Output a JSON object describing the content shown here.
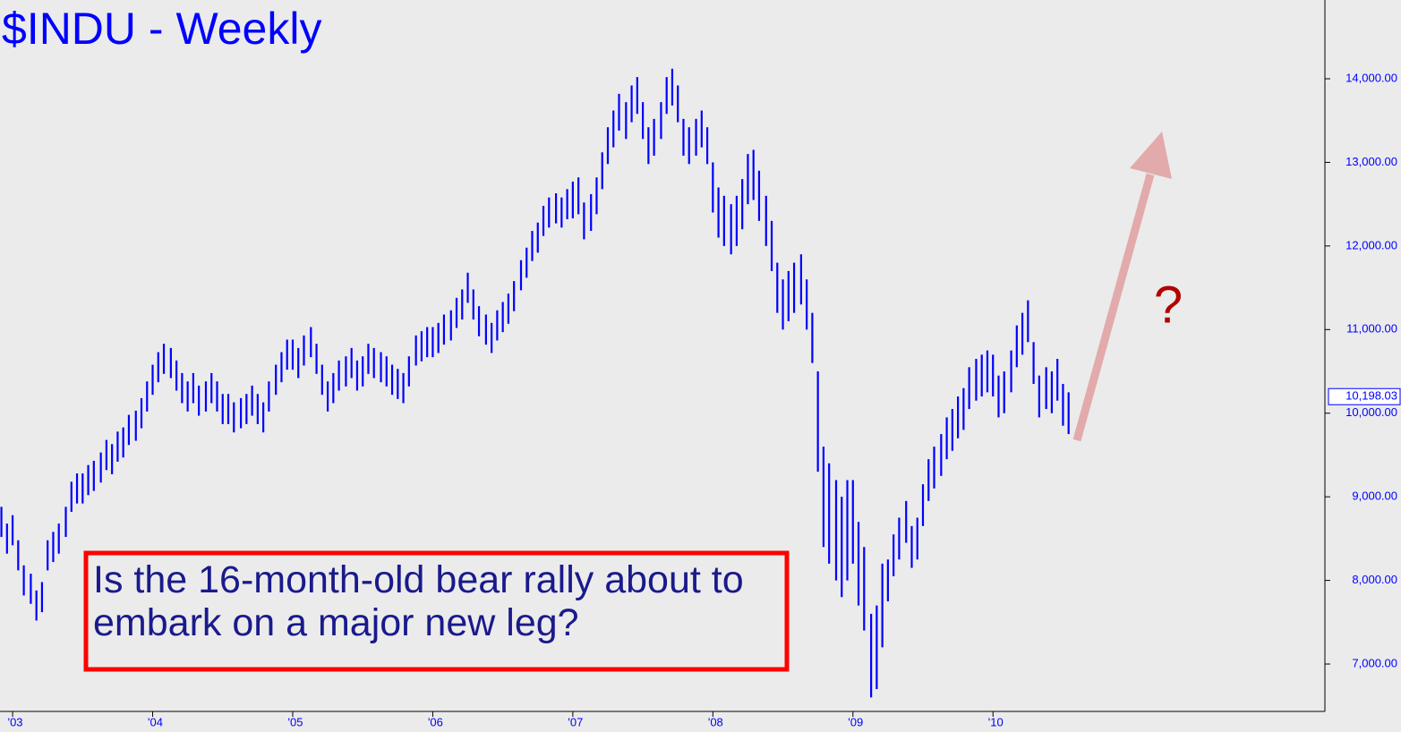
{
  "chart_data": {
    "type": "range-bar",
    "title": "$INDU - Weekly",
    "annotation": "Is the 16-month-old bear rally about to embark on a major new leg?",
    "question": "?",
    "color": "#0000ff",
    "last_value": {
      "value": 10198.03,
      "label": "10,198.03"
    },
    "xlim": [
      2002.91,
      2012.37
    ],
    "ylim": [
      6433,
      14942
    ],
    "xticks": [
      {
        "value": 2003,
        "label": "'03"
      },
      {
        "value": 2004,
        "label": "'04"
      },
      {
        "value": 2005,
        "label": "'05"
      },
      {
        "value": 2006,
        "label": "'06"
      },
      {
        "value": 2007,
        "label": "'07"
      },
      {
        "value": 2008,
        "label": "'08"
      },
      {
        "value": 2009,
        "label": "'09"
      },
      {
        "value": 2010,
        "label": "'10"
      }
    ],
    "yticks": [
      {
        "value": 7000,
        "label": "7,000.00"
      },
      {
        "value": 8000,
        "label": "8,000.00"
      },
      {
        "value": 9000,
        "label": "9,000.00"
      },
      {
        "value": 10000,
        "label": "10,000.00"
      },
      {
        "value": 11000,
        "label": "11,000.00"
      },
      {
        "value": 12000,
        "label": "12,000.00"
      },
      {
        "value": 13000,
        "label": "13,000.00"
      },
      {
        "value": 14000,
        "label": "14,000.00"
      }
    ],
    "x": [
      2002.92,
      2002.96,
      2003.0,
      2003.04,
      2003.08,
      2003.13,
      2003.17,
      2003.21,
      2003.25,
      2003.29,
      2003.33,
      2003.38,
      2003.42,
      2003.46,
      2003.5,
      2003.54,
      2003.58,
      2003.63,
      2003.67,
      2003.71,
      2003.75,
      2003.79,
      2003.83,
      2003.88,
      2003.92,
      2003.96,
      2004.0,
      2004.04,
      2004.08,
      2004.13,
      2004.17,
      2004.21,
      2004.25,
      2004.29,
      2004.33,
      2004.38,
      2004.42,
      2004.46,
      2004.5,
      2004.54,
      2004.58,
      2004.63,
      2004.67,
      2004.71,
      2004.75,
      2004.79,
      2004.83,
      2004.88,
      2004.92,
      2004.96,
      2005.0,
      2005.04,
      2005.08,
      2005.13,
      2005.17,
      2005.21,
      2005.25,
      2005.29,
      2005.33,
      2005.38,
      2005.42,
      2005.46,
      2005.5,
      2005.54,
      2005.58,
      2005.63,
      2005.67,
      2005.71,
      2005.75,
      2005.79,
      2005.83,
      2005.88,
      2005.92,
      2005.96,
      2006.0,
      2006.04,
      2006.08,
      2006.13,
      2006.17,
      2006.21,
      2006.25,
      2006.29,
      2006.33,
      2006.38,
      2006.42,
      2006.46,
      2006.5,
      2006.54,
      2006.58,
      2006.63,
      2006.67,
      2006.71,
      2006.75,
      2006.79,
      2006.83,
      2006.88,
      2006.92,
      2006.96,
      2007.0,
      2007.04,
      2007.08,
      2007.13,
      2007.17,
      2007.21,
      2007.25,
      2007.29,
      2007.33,
      2007.38,
      2007.42,
      2007.46,
      2007.5,
      2007.54,
      2007.58,
      2007.63,
      2007.67,
      2007.71,
      2007.75,
      2007.79,
      2007.83,
      2007.88,
      2007.92,
      2007.96,
      2008.0,
      2008.04,
      2008.08,
      2008.13,
      2008.17,
      2008.21,
      2008.25,
      2008.29,
      2008.33,
      2008.38,
      2008.42,
      2008.46,
      2008.5,
      2008.54,
      2008.58,
      2008.63,
      2008.67,
      2008.71,
      2008.75,
      2008.79,
      2008.83,
      2008.88,
      2008.92,
      2008.96,
      2009.0,
      2009.04,
      2009.08,
      2009.13,
      2009.17,
      2009.21,
      2009.25,
      2009.29,
      2009.33,
      2009.38,
      2009.42,
      2009.46,
      2009.5,
      2009.54,
      2009.58,
      2009.63,
      2009.67,
      2009.71,
      2009.75,
      2009.79,
      2009.83,
      2009.88,
      2009.92,
      2009.96,
      2010.0,
      2010.04,
      2010.08,
      2010.13,
      2010.17,
      2010.21,
      2010.25,
      2010.29,
      2010.33,
      2010.38,
      2010.42,
      2010.46,
      2010.5,
      2010.54
    ],
    "high": [
      8880,
      8680,
      8780,
      8480,
      8180,
      8080,
      7880,
      7980,
      8480,
      8580,
      8680,
      8880,
      9180,
      9280,
      9280,
      9380,
      9430,
      9530,
      9680,
      9630,
      9780,
      9830,
      9980,
      10030,
      10180,
      10380,
      10580,
      10730,
      10830,
      10780,
      10630,
      10480,
      10380,
      10480,
      10330,
      10380,
      10480,
      10380,
      10230,
      10230,
      10130,
      10180,
      10230,
      10330,
      10230,
      10130,
      10380,
      10580,
      10730,
      10880,
      10880,
      10780,
      10930,
      11030,
      10830,
      10580,
      10380,
      10480,
      10630,
      10680,
      10780,
      10630,
      10680,
      10830,
      10780,
      10730,
      10680,
      10580,
      10530,
      10480,
      10680,
      10930,
      10980,
      11030,
      11030,
      11080,
      11180,
      11230,
      11380,
      11480,
      11680,
      11480,
      11280,
      11180,
      11080,
      11230,
      11330,
      11430,
      11580,
      11830,
      11980,
      12180,
      12280,
      12480,
      12580,
      12630,
      12580,
      12680,
      12770,
      12820,
      12520,
      12620,
      12820,
      13120,
      13420,
      13620,
      13820,
      13720,
      13920,
      14020,
      13720,
      13420,
      13520,
      13720,
      14020,
      14120,
      13920,
      13520,
      13420,
      13520,
      13620,
      13420,
      13000,
      12700,
      12600,
      12500,
      12600,
      12800,
      13100,
      13150,
      12900,
      12600,
      12300,
      11800,
      11600,
      11700,
      11800,
      11900,
      11600,
      11200,
      10500,
      9600,
      9400,
      9200,
      9000,
      9200,
      9200,
      8700,
      8400,
      7600,
      7700,
      8200,
      8250,
      8550,
      8750,
      8950,
      8650,
      8750,
      9150,
      9450,
      9600,
      9750,
      9950,
      10050,
      10200,
      10300,
      10550,
      10650,
      10700,
      10750,
      10700,
      10450,
      10500,
      10750,
      11050,
      11200,
      11350,
      10850,
      10450,
      10550,
      10500,
      10650,
      10350,
      10250
    ],
    "low": [
      8520,
      8320,
      8420,
      8120,
      7820,
      7720,
      7520,
      7620,
      8120,
      8220,
      8320,
      8520,
      8820,
      8920,
      8920,
      9020,
      9070,
      9170,
      9320,
      9270,
      9420,
      9470,
      9620,
      9670,
      9820,
      10020,
      10220,
      10370,
      10470,
      10420,
      10270,
      10120,
      10020,
      10120,
      9970,
      10020,
      10120,
      10020,
      9870,
      9870,
      9770,
      9820,
      9870,
      9970,
      9870,
      9770,
      10020,
      10220,
      10370,
      10520,
      10520,
      10420,
      10570,
      10670,
      10470,
      10220,
      10020,
      10120,
      10270,
      10320,
      10420,
      10270,
      10320,
      10470,
      10420,
      10370,
      10320,
      10220,
      10170,
      10120,
      10320,
      10570,
      10620,
      10670,
      10670,
      10720,
      10820,
      10870,
      11020,
      11120,
      11320,
      11120,
      10920,
      10820,
      10720,
      10870,
      10970,
      11070,
      11220,
      11470,
      11620,
      11820,
      11920,
      12120,
      12220,
      12270,
      12220,
      12320,
      12330,
      12380,
      12080,
      12180,
      12380,
      12680,
      12980,
      13180,
      13380,
      13280,
      13480,
      13580,
      13280,
      12980,
      13080,
      13280,
      13580,
      13680,
      13480,
      13080,
      12980,
      13080,
      13180,
      12980,
      12400,
      12100,
      12000,
      11900,
      12000,
      12200,
      12500,
      12550,
      12300,
      12000,
      11700,
      11200,
      11000,
      11100,
      11200,
      11300,
      11000,
      10600,
      9300,
      8400,
      8200,
      8000,
      7800,
      8000,
      8200,
      7700,
      7400,
      6600,
      6700,
      7200,
      7750,
      8050,
      8250,
      8450,
      8150,
      8250,
      8650,
      8950,
      9100,
      9250,
      9450,
      9550,
      9700,
      9800,
      10050,
      10150,
      10200,
      10250,
      10200,
      9950,
      10000,
      10250,
      10550,
      10700,
      10850,
      10350,
      9950,
      10050,
      10000,
      10150,
      9850,
      9750
    ]
  }
}
